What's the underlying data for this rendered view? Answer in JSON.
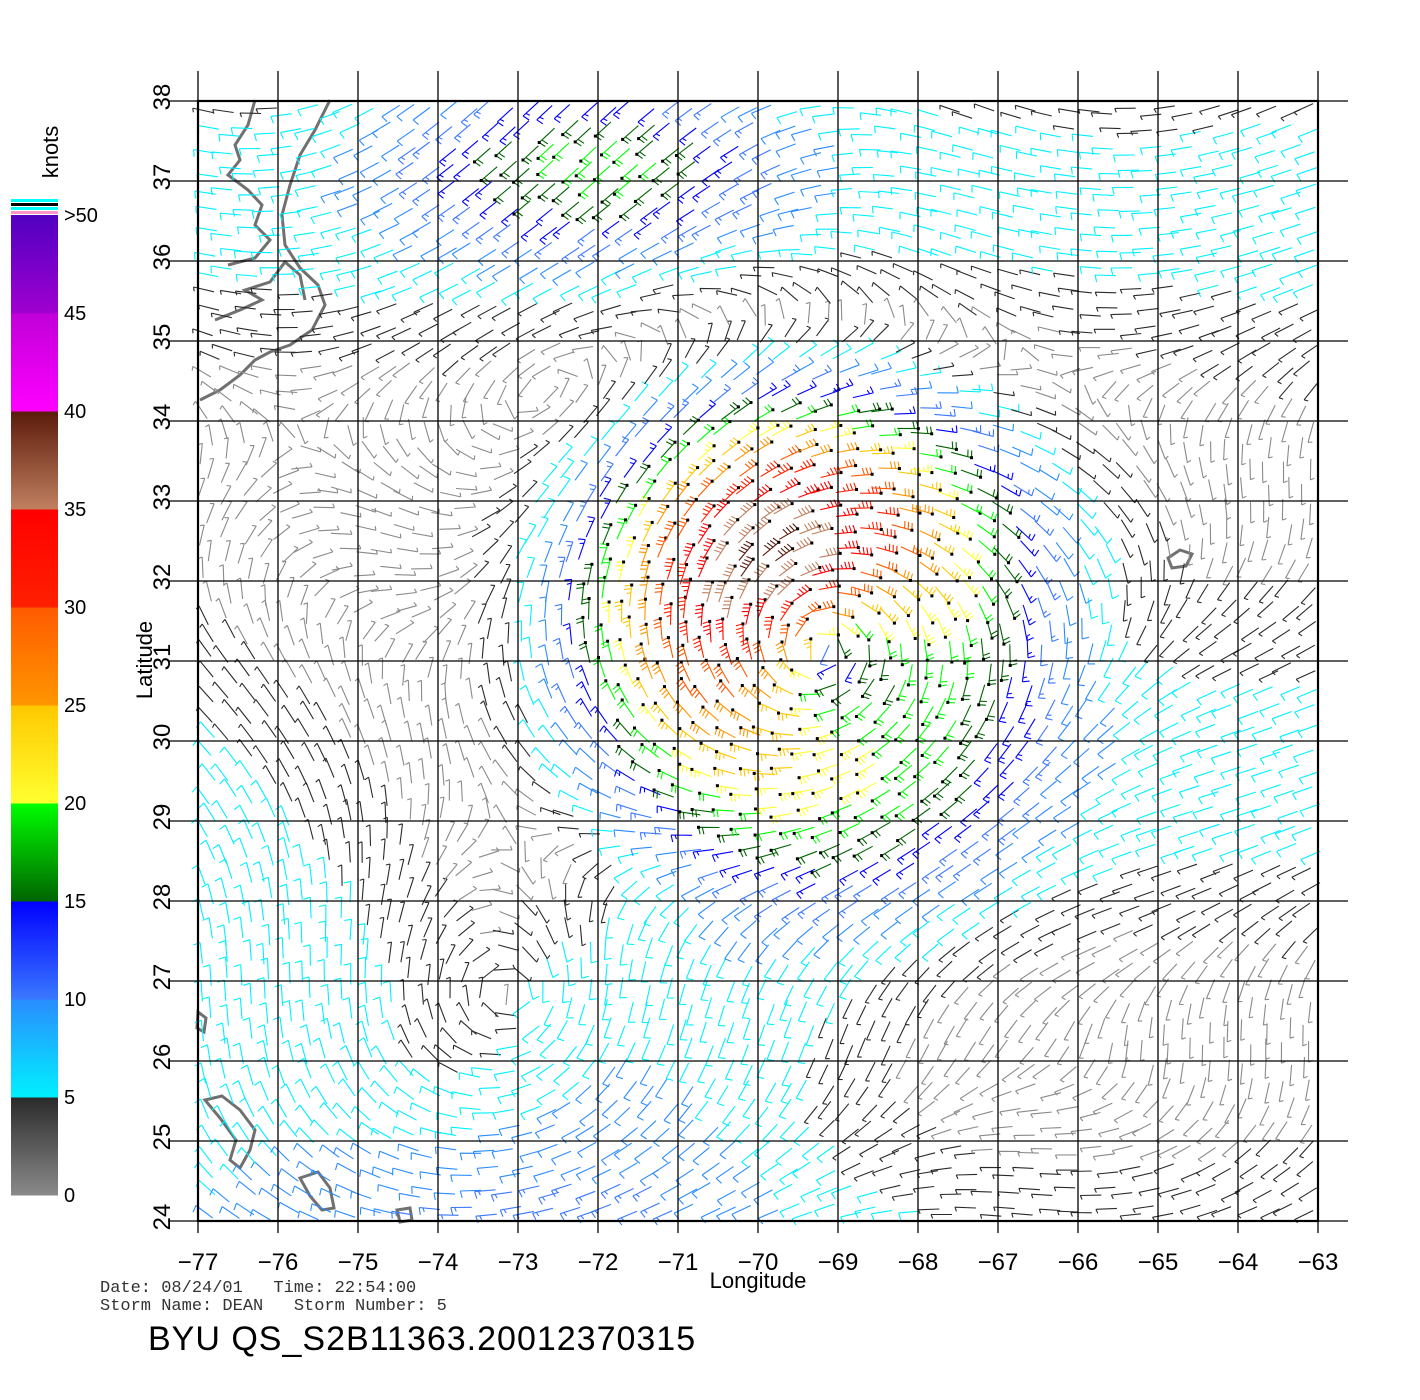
{
  "chart_data": {
    "type": "wind-barb-map",
    "xlabel": "Longitude",
    "ylabel": "Latitude",
    "xlim": [
      -77,
      -63
    ],
    "ylim": [
      24,
      38
    ],
    "x_ticks": [
      "−77",
      "−76",
      "−75",
      "−74",
      "−73",
      "−72",
      "−71",
      "−70",
      "−69",
      "−68",
      "−67",
      "−66",
      "−65",
      "−64",
      "−63"
    ],
    "y_ticks": [
      "24",
      "25",
      "26",
      "27",
      "28",
      "29",
      "30",
      "31",
      "32",
      "33",
      "34",
      "35",
      "36",
      "37",
      "38"
    ],
    "grid": true,
    "storm_center": {
      "lon": -69.2,
      "lat": 31.1
    },
    "colorbar": {
      "title": "knots",
      "labels": [
        "0",
        "5",
        "10",
        "15",
        "20",
        "25",
        "30",
        "35",
        "40",
        "45",
        ">50"
      ],
      "segments": [
        {
          "from": 0,
          "to": 5,
          "colors": [
            "#8a8a8a",
            "#2a2a2a"
          ]
        },
        {
          "from": 5,
          "to": 10,
          "colors": [
            "#00f0ff",
            "#2a8cff"
          ]
        },
        {
          "from": 10,
          "to": 15,
          "colors": [
            "#3a78ff",
            "#0000ff"
          ]
        },
        {
          "from": 15,
          "to": 20,
          "colors": [
            "#006400",
            "#00ff00"
          ]
        },
        {
          "from": 20,
          "to": 25,
          "colors": [
            "#ffff30",
            "#ffc800"
          ]
        },
        {
          "from": 25,
          "to": 30,
          "colors": [
            "#ff9600",
            "#ff5a00"
          ]
        },
        {
          "from": 30,
          "to": 35,
          "colors": [
            "#ff2000",
            "#ff0000"
          ]
        },
        {
          "from": 35,
          "to": 40,
          "colors": [
            "#c08060",
            "#5a1a0a"
          ]
        },
        {
          "from": 40,
          "to": 45,
          "colors": [
            "#ff00ff",
            "#c000d8"
          ]
        },
        {
          "from": 45,
          "to": 50,
          "colors": [
            "#a000d0",
            "#5000c0"
          ]
        }
      ]
    }
  },
  "footer": {
    "date_line": "Date: 08/24/01   Time: 22:54:00",
    "storm_line": "Storm Name: DEAN   Storm Number: 5",
    "file_id": "BYU  QS_S2B11363.20012370315"
  }
}
